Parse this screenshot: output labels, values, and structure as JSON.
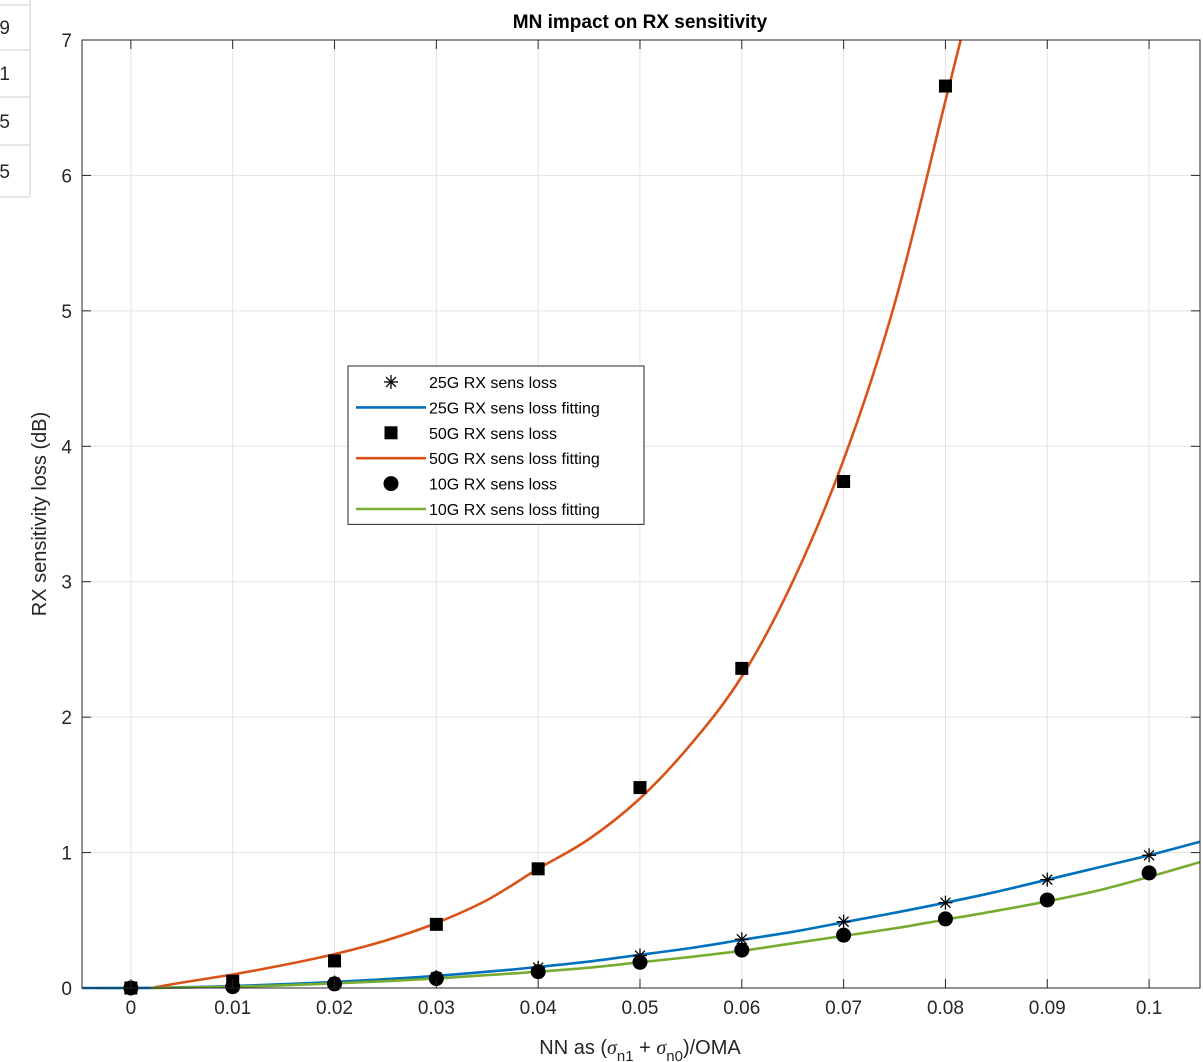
{
  "edge_table": {
    "cells": [
      "9",
      "1",
      "5",
      "5"
    ]
  },
  "chart_data": {
    "type": "scatter",
    "title": "MN impact on RX sensitivity",
    "xlabel_prefix": "NN as (",
    "xlabel_sigma": "σ",
    "xlabel_sub1": "n1",
    "xlabel_plus": " + ",
    "xlabel_sub0": "n0",
    "xlabel_suffix": ")/OMA",
    "ylabel": "RX sensitivity loss (dB)",
    "xlim": [
      -0.0048,
      0.105
    ],
    "ylim": [
      0,
      7
    ],
    "xticks": [
      0,
      0.01,
      0.02,
      0.03,
      0.04,
      0.05,
      0.06,
      0.07,
      0.08,
      0.09,
      0.1
    ],
    "xtick_labels": [
      "0",
      "0.01",
      "0.02",
      "0.03",
      "0.04",
      "0.05",
      "0.06",
      "0.07",
      "0.08",
      "0.09",
      "0.1"
    ],
    "yticks": [
      0,
      1,
      2,
      3,
      4,
      5,
      6,
      7
    ],
    "ytick_labels": [
      "0",
      "1",
      "2",
      "3",
      "4",
      "5",
      "6",
      "7"
    ],
    "grid": true,
    "legend_position": "center-left",
    "series": [
      {
        "name": "25G RX sens loss",
        "kind": "markers",
        "marker": "asterisk",
        "color": "#000000",
        "x": [
          0,
          0.01,
          0.02,
          0.03,
          0.04,
          0.05,
          0.06,
          0.07,
          0.08,
          0.09,
          0.1
        ],
        "y": [
          0.0,
          0.02,
          0.04,
          0.08,
          0.15,
          0.24,
          0.36,
          0.49,
          0.63,
          0.8,
          0.98
        ]
      },
      {
        "name": "25G RX sens loss fitting",
        "kind": "line",
        "color": "#0072BD",
        "x": [
          -0.0048,
          0.0,
          0.005,
          0.01,
          0.015,
          0.02,
          0.025,
          0.03,
          0.035,
          0.04,
          0.045,
          0.05,
          0.055,
          0.06,
          0.065,
          0.07,
          0.075,
          0.08,
          0.085,
          0.09,
          0.095,
          0.1,
          0.105
        ],
        "y": [
          0.0,
          0.0,
          0.005,
          0.015,
          0.028,
          0.045,
          0.065,
          0.09,
          0.12,
          0.155,
          0.195,
          0.245,
          0.295,
          0.355,
          0.415,
          0.485,
          0.555,
          0.63,
          0.71,
          0.8,
          0.89,
          0.98,
          1.08
        ]
      },
      {
        "name": "50G RX sens loss",
        "kind": "markers",
        "marker": "square",
        "color": "#000000",
        "x": [
          0,
          0.01,
          0.02,
          0.03,
          0.04,
          0.05,
          0.06,
          0.07,
          0.08
        ],
        "y": [
          0.0,
          0.05,
          0.2,
          0.47,
          0.88,
          1.48,
          2.36,
          3.74,
          6.66
        ]
      },
      {
        "name": "50G RX sens loss fitting",
        "kind": "line",
        "color": "#D95319",
        "x": [
          0.002,
          0.005,
          0.01,
          0.015,
          0.02,
          0.025,
          0.03,
          0.035,
          0.04,
          0.045,
          0.05,
          0.055,
          0.06,
          0.065,
          0.07,
          0.075,
          0.08,
          0.0815
        ],
        "y": [
          0.0,
          0.04,
          0.1,
          0.17,
          0.25,
          0.35,
          0.48,
          0.65,
          0.88,
          1.1,
          1.4,
          1.8,
          2.3,
          3.0,
          3.9,
          5.05,
          6.55,
          7.0
        ]
      },
      {
        "name": "10G RX sens loss",
        "kind": "markers",
        "marker": "circle",
        "color": "#000000",
        "x": [
          0,
          0.01,
          0.02,
          0.03,
          0.04,
          0.05,
          0.06,
          0.07,
          0.08,
          0.09,
          0.1
        ],
        "y": [
          0.0,
          0.01,
          0.03,
          0.07,
          0.12,
          0.19,
          0.28,
          0.39,
          0.51,
          0.65,
          0.85
        ]
      },
      {
        "name": "10G RX sens loss fitting",
        "kind": "line",
        "color": "#77AC30",
        "x": [
          0.002,
          0.005,
          0.01,
          0.015,
          0.02,
          0.025,
          0.03,
          0.035,
          0.04,
          0.045,
          0.05,
          0.055,
          0.06,
          0.065,
          0.07,
          0.075,
          0.08,
          0.085,
          0.09,
          0.095,
          0.1,
          0.105
        ],
        "y": [
          0.0,
          0.003,
          0.01,
          0.02,
          0.035,
          0.05,
          0.07,
          0.095,
          0.12,
          0.15,
          0.19,
          0.23,
          0.275,
          0.33,
          0.385,
          0.44,
          0.505,
          0.57,
          0.64,
          0.72,
          0.82,
          0.93
        ]
      }
    ]
  }
}
